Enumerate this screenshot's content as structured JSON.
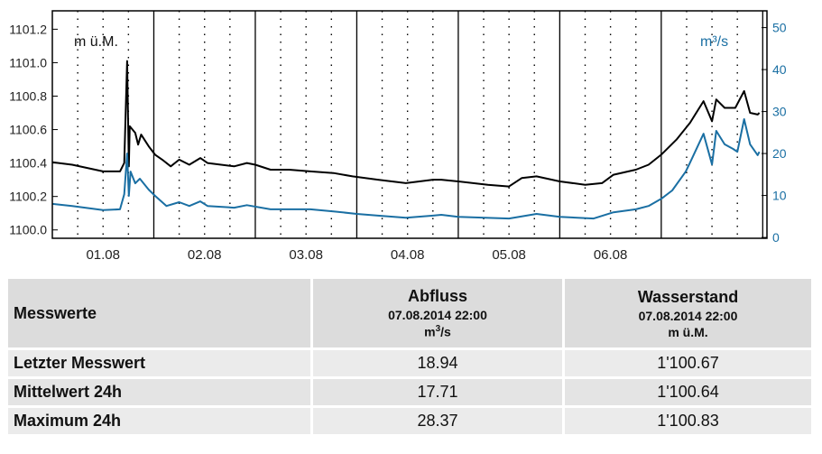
{
  "chart_data": {
    "type": "line",
    "x_unit": "hours since 01.08 00:00",
    "xlim": [
      0,
      169
    ],
    "x_ticks": [
      {
        "label": "01.08",
        "hour": 12
      },
      {
        "label": "02.08",
        "hour": 36
      },
      {
        "label": "03.08",
        "hour": 60
      },
      {
        "label": "04.08",
        "hour": 84
      },
      {
        "label": "05.08",
        "hour": 108
      },
      {
        "label": "06.08",
        "hour": 132
      }
    ],
    "grid": {
      "major_every_hours": 24,
      "minor_every_hours": 6
    },
    "left_axis": {
      "label": "m ü.M.",
      "ylim": [
        1099.95,
        1101.31
      ],
      "ticks": [
        "1100.0",
        "1100.2",
        "1100.4",
        "1100.6",
        "1100.8",
        "1101.0",
        "1101.2"
      ]
    },
    "right_axis": {
      "label": "m³/s",
      "ylim": [
        -0.2,
        54
      ],
      "ticks": [
        "0",
        "10",
        "20",
        "30",
        "40",
        "50"
      ]
    },
    "series": [
      {
        "name": "Wasserstand",
        "axis": "left",
        "color": "#000000",
        "x": [
          0,
          4.7,
          12,
          16,
          17,
          17.7,
          18.1,
          18.3,
          19.6,
          20.3,
          21,
          22.8,
          24.3,
          26,
          28,
          30,
          32.4,
          35,
          36.7,
          43,
          46,
          48,
          51.6,
          56,
          61,
          66.5,
          71,
          77,
          83.6,
          90,
          92,
          96,
          103,
          108,
          111,
          114.5,
          120,
          126,
          130,
          132.7,
          138,
          141,
          144,
          147.6,
          150.8,
          154,
          156,
          157,
          159,
          161.5,
          163.6,
          165,
          166.8,
          167.2
        ],
        "y": [
          1100.405,
          1100.39,
          1100.35,
          1100.35,
          1100.4,
          1101.01,
          1100.38,
          1100.62,
          1100.58,
          1100.51,
          1100.57,
          1100.5,
          1100.45,
          1100.42,
          1100.38,
          1100.42,
          1100.39,
          1100.43,
          1100.4,
          1100.38,
          1100.4,
          1100.39,
          1100.36,
          1100.36,
          1100.35,
          1100.34,
          1100.32,
          1100.3,
          1100.28,
          1100.3,
          1100.3,
          1100.29,
          1100.27,
          1100.26,
          1100.31,
          1100.32,
          1100.29,
          1100.27,
          1100.28,
          1100.33,
          1100.36,
          1100.39,
          1100.45,
          1100.54,
          1100.64,
          1100.77,
          1100.65,
          1100.78,
          1100.73,
          1100.73,
          1100.83,
          1100.7,
          1100.69,
          1100.7
        ]
      },
      {
        "name": "Abfluss",
        "axis": "right",
        "color": "#1a6fa3",
        "x": [
          0,
          4.7,
          12,
          16,
          17,
          17.7,
          18.1,
          18.5,
          19.6,
          20.7,
          22.8,
          24.3,
          27,
          30,
          32.4,
          35,
          36.7,
          43,
          46,
          51.6,
          61,
          66.5,
          72,
          77,
          83.6,
          90,
          92,
          96,
          108,
          114.5,
          120,
          128,
          132.7,
          138,
          141,
          144,
          146.6,
          149.8,
          150.8,
          154,
          156,
          157,
          159,
          161,
          162,
          163.6,
          165,
          166.8,
          167.2
        ],
        "y": [
          8.0,
          7.5,
          6.5,
          6.7,
          10.3,
          20.0,
          9.9,
          15.7,
          12.9,
          14.0,
          11.4,
          9.9,
          7.5,
          8.4,
          7.5,
          8.6,
          7.5,
          7.1,
          7.7,
          6.7,
          6.7,
          6.2,
          5.6,
          5.2,
          4.7,
          5.2,
          5.4,
          4.9,
          4.5,
          5.6,
          4.9,
          4.5,
          6.0,
          6.7,
          7.5,
          9.2,
          11.2,
          15.7,
          17.8,
          24.7,
          17.4,
          25.4,
          22.2,
          21.1,
          20.4,
          28.2,
          22.2,
          19.6,
          20.4
        ]
      }
    ]
  },
  "table": {
    "header": {
      "label": "Messwerte",
      "col1": {
        "title": "Abfluss",
        "timestamp": "07.08.2014 22:00",
        "unit_base": "m",
        "unit_sup": "3",
        "unit_rest": "/s"
      },
      "col2": {
        "title": "Wasserstand",
        "timestamp": "07.08.2014 22:00",
        "unit": "m ü.M."
      }
    },
    "rows": [
      {
        "label": "Letzter Messwert",
        "abfluss": "18.94",
        "wasserstand": "1'100.67"
      },
      {
        "label": "Mittelwert 24h",
        "abfluss": "17.71",
        "wasserstand": "1'100.64"
      },
      {
        "label": "Maximum 24h",
        "abfluss": "28.37",
        "wasserstand": "1'100.83"
      }
    ]
  }
}
